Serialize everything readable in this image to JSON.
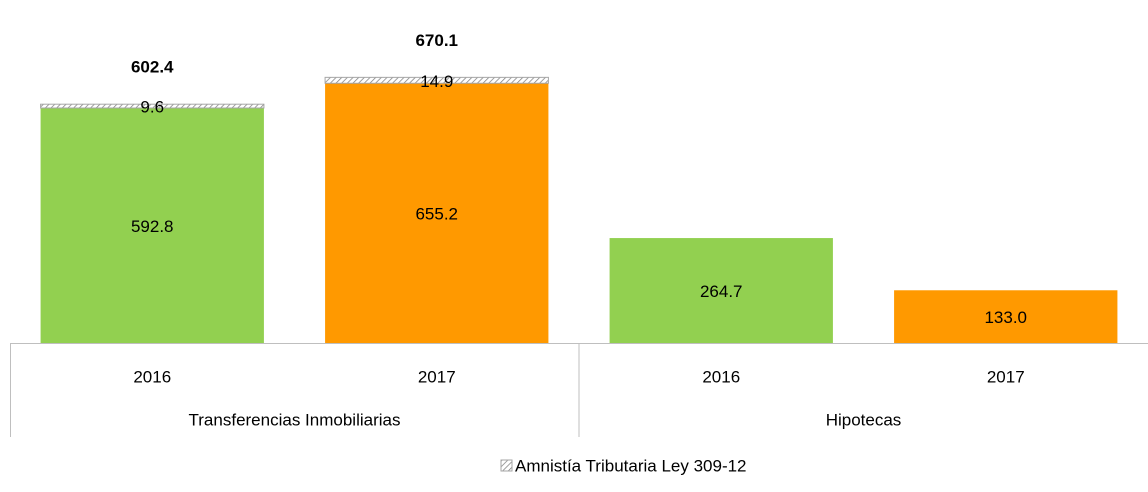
{
  "chart_data": {
    "type": "stacked-bar",
    "groups": [
      {
        "name": "Transferencias Inmobiliarias",
        "categories": [
          "2016",
          "2017"
        ]
      },
      {
        "name": "Hipotecas",
        "categories": [
          "2016",
          "2017"
        ]
      }
    ],
    "series": [
      {
        "colors": [
          "#92d050",
          "#ff9900",
          "#92d050",
          "#ff9900"
        ],
        "values": [
          592.8,
          655.2,
          264.7,
          133.0
        ],
        "value_labels": [
          "592.8",
          "655.2",
          "264.7",
          "133.0"
        ]
      },
      {
        "name": "Amnistía Tributaria Ley 309-12",
        "color": "#a6a6a6",
        "pattern": "hatch",
        "values": [
          9.6,
          14.9,
          null,
          null
        ]
      }
    ],
    "totals": [
      602.4,
      670.1,
      null,
      null
    ],
    "ylim": [
      0,
      840
    ],
    "legend": "bottom"
  }
}
